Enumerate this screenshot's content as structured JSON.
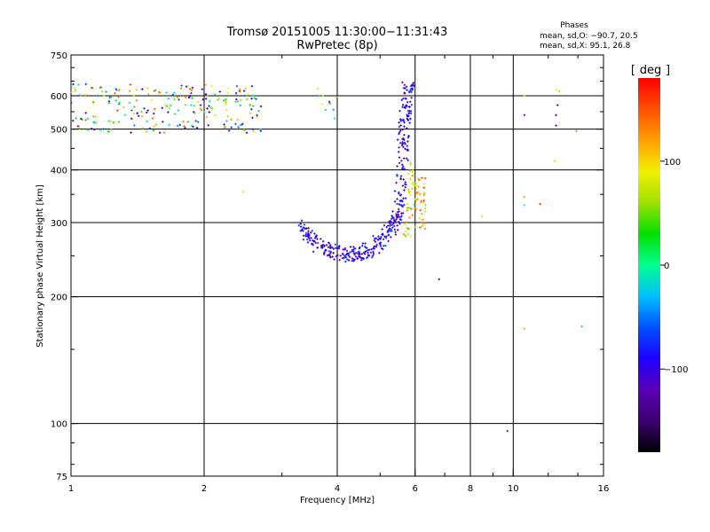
{
  "header": {
    "title_line1": "Tromsø 20151005 11:30:00−11:31:43",
    "title_line2": "RwPretec (8p)"
  },
  "stats": {
    "heading": "Phases",
    "o_line": "mean, sd,O: −90.7, 20.5",
    "x_line": "mean, sd,X:  95.1, 26.8"
  },
  "colors": {
    "grid": "#000000",
    "background": "#ffffff",
    "colormap": [
      "#000000",
      "#3c0070",
      "#5a00b4",
      "#1e00ff",
      "#0050ff",
      "#00c0ff",
      "#00ff90",
      "#00e000",
      "#9ee000",
      "#f0f000",
      "#ffa000",
      "#ff5000",
      "#ff0000"
    ]
  },
  "colorbar": {
    "label": "deg",
    "tick_labels": [
      "100",
      "0",
      "−100"
    ]
  },
  "chart_data": {
    "type": "scatter",
    "xlabel": "Frequency [MHz]",
    "ylabel": "Stationary phase Virtual Height [km]",
    "x_scale": "log",
    "y_scale": "log",
    "xlim": [
      1,
      16
    ],
    "ylim": [
      75,
      750
    ],
    "x_ticks": [
      1,
      2,
      4,
      6,
      8,
      10,
      16
    ],
    "x_tick_labels": [
      "1",
      "2",
      "4",
      "6",
      "8",
      "10",
      "16"
    ],
    "y_ticks": [
      75,
      100,
      200,
      300,
      400,
      500,
      600,
      750
    ],
    "y_tick_labels": [
      "75",
      "100",
      "200",
      "300",
      "400",
      "500",
      "600",
      "750"
    ],
    "x_gridlines": [
      2,
      4,
      6,
      8,
      10
    ],
    "y_gridlines": [
      100,
      200,
      300,
      400,
      500,
      600
    ],
    "colorbar_range": [
      -180,
      180
    ],
    "colorbar_ticks": [
      100,
      0,
      -100
    ],
    "point_groups": [
      {
        "kind": "cluster",
        "x_range": [
          1.0,
          2.7
        ],
        "y_range": [
          490,
          640
        ],
        "phase_range": [
          -140,
          160
        ],
        "count": 240
      },
      {
        "kind": "cluster",
        "x_range": [
          3.5,
          4.0
        ],
        "y_range": [
          510,
          630
        ],
        "phase_range": [
          -130,
          120
        ],
        "count": 10
      },
      {
        "kind": "trace",
        "points": [
          [
            3.35,
            293
          ],
          [
            3.5,
            272
          ],
          [
            3.7,
            262
          ],
          [
            3.9,
            256
          ],
          [
            4.1,
            253
          ],
          [
            4.3,
            252
          ],
          [
            4.5,
            254
          ],
          [
            4.7,
            258
          ],
          [
            4.9,
            265
          ],
          [
            5.1,
            275
          ],
          [
            5.3,
            290
          ],
          [
            5.45,
            310
          ],
          [
            5.55,
            345
          ],
          [
            5.6,
            400
          ],
          [
            5.65,
            470
          ],
          [
            5.7,
            540
          ],
          [
            5.75,
            600
          ],
          [
            5.8,
            650
          ]
        ],
        "spread": 0.06,
        "phase_range": [
          -140,
          -60
        ],
        "count": 420
      },
      {
        "kind": "trace",
        "points": [
          [
            5.75,
            280
          ],
          [
            5.85,
            320
          ],
          [
            5.9,
            380
          ],
          [
            5.9,
            420
          ]
        ],
        "spread": 0.04,
        "phase_range": [
          30,
          140
        ],
        "count": 40
      },
      {
        "kind": "cluster",
        "x_range": [
          6.0,
          6.35
        ],
        "y_range": [
          290,
          385
        ],
        "phase_range": [
          60,
          160
        ],
        "count": 45
      },
      {
        "kind": "points",
        "list": [
          [
            2.45,
            355,
            100
          ],
          [
            6.8,
            220,
            -110
          ],
          [
            8.5,
            310,
            100
          ],
          [
            9.7,
            96,
            -120
          ],
          [
            10.6,
            600,
            110
          ],
          [
            10.6,
            540,
            -120
          ],
          [
            10.6,
            345,
            120
          ],
          [
            10.6,
            330,
            0
          ],
          [
            10.6,
            168,
            120
          ],
          [
            11.5,
            332,
            160
          ],
          [
            12.4,
            420,
            100
          ],
          [
            12.5,
            620,
            90
          ],
          [
            12.6,
            570,
            -110
          ],
          [
            12.5,
            540,
            -130
          ],
          [
            12.5,
            510,
            -120
          ],
          [
            12.7,
            615,
            110
          ],
          [
            13.9,
            495,
            130
          ],
          [
            14.3,
            170,
            -30
          ]
        ]
      }
    ]
  }
}
